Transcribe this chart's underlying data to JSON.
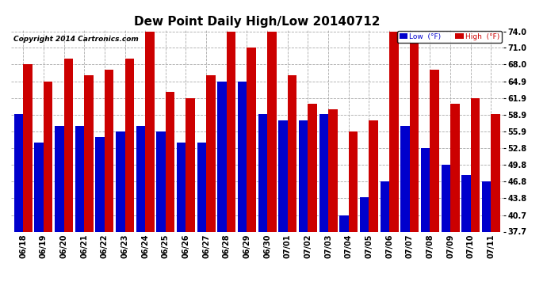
{
  "title": "Dew Point Daily High/Low 20140712",
  "copyright": "Copyright 2014 Cartronics.com",
  "dates": [
    "06/18",
    "06/19",
    "06/20",
    "06/21",
    "06/22",
    "06/23",
    "06/24",
    "06/25",
    "06/26",
    "06/27",
    "06/28",
    "06/29",
    "06/30",
    "07/01",
    "07/02",
    "07/03",
    "07/04",
    "07/05",
    "07/06",
    "07/07",
    "07/08",
    "07/09",
    "07/10",
    "07/11"
  ],
  "high_values": [
    68.0,
    64.9,
    69.0,
    66.0,
    67.0,
    69.0,
    74.0,
    63.0,
    61.9,
    66.0,
    74.0,
    71.0,
    74.0,
    66.0,
    60.9,
    59.9,
    55.9,
    57.9,
    74.0,
    72.0,
    67.0,
    60.9,
    61.9,
    59.0
  ],
  "low_values": [
    59.0,
    53.9,
    56.9,
    56.9,
    54.9,
    55.9,
    56.9,
    55.9,
    53.9,
    53.9,
    64.9,
    64.9,
    59.0,
    57.9,
    57.9,
    59.0,
    40.7,
    44.0,
    46.8,
    56.9,
    52.8,
    49.8,
    48.0,
    46.8
  ],
  "bar_color_low": "#0000cc",
  "bar_color_high": "#cc0000",
  "ylim_min": 37.7,
  "ylim_max": 74.0,
  "yticks": [
    37.7,
    40.7,
    43.8,
    46.8,
    49.8,
    52.8,
    55.9,
    58.9,
    61.9,
    64.9,
    68.0,
    71.0,
    74.0
  ],
  "bg_color": "#ffffff",
  "grid_color": "#aaaaaa",
  "title_fontsize": 11,
  "label_fontsize": 7,
  "copyright_fontsize": 6.5
}
